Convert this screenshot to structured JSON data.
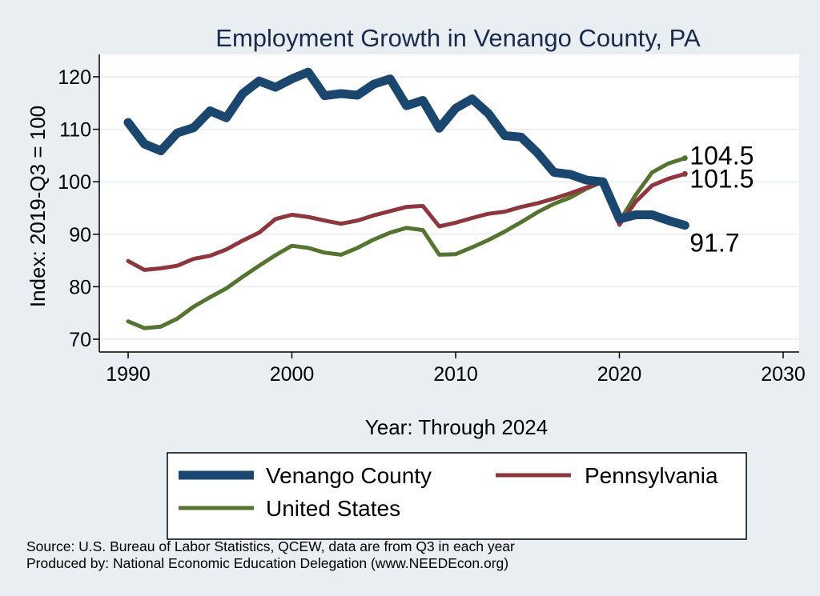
{
  "chart_data": {
    "type": "line",
    "title": "Employment Growth in Venango County, PA",
    "xlabel": "Year: Through 2024",
    "ylabel": "Index: 2019-Q3 = 100",
    "xlim": [
      1990,
      2030
    ],
    "ylim": [
      68,
      124
    ],
    "xticks": [
      1990,
      2000,
      2010,
      2020,
      2030
    ],
    "yticks": [
      70,
      80,
      90,
      100,
      110,
      120
    ],
    "grid": true,
    "legend_position": "bottom",
    "x": [
      1990,
      1991,
      1992,
      1993,
      1994,
      1995,
      1996,
      1997,
      1998,
      1999,
      2000,
      2001,
      2002,
      2003,
      2004,
      2005,
      2006,
      2007,
      2008,
      2009,
      2010,
      2011,
      2012,
      2013,
      2014,
      2015,
      2016,
      2017,
      2018,
      2019,
      2020,
      2021,
      2022,
      2023,
      2024
    ],
    "series": [
      {
        "name": "Venango  County",
        "color": "#1a476f",
        "values": [
          111.3,
          107.2,
          105.9,
          109.3,
          110.3,
          113.5,
          112.2,
          116.8,
          119.2,
          118.0,
          119.6,
          120.9,
          116.4,
          116.8,
          116.5,
          118.6,
          119.6,
          114.5,
          115.5,
          110.2,
          114.0,
          115.8,
          113.0,
          108.8,
          108.5,
          105.5,
          101.8,
          101.4,
          100.3,
          100.0,
          92.9,
          93.7,
          93.7,
          92.6,
          91.7
        ],
        "end_label": "91.7"
      },
      {
        "name": "Pennsylvania",
        "color": "#90353b",
        "values": [
          84.9,
          83.2,
          83.5,
          84.0,
          85.3,
          85.9,
          87.1,
          88.8,
          90.3,
          92.9,
          93.7,
          93.3,
          92.6,
          92.0,
          92.6,
          93.6,
          94.4,
          95.2,
          95.4,
          91.5,
          92.2,
          93.1,
          93.9,
          94.3,
          95.2,
          95.9,
          96.8,
          97.8,
          98.9,
          100.0,
          91.8,
          96.2,
          99.3,
          100.6,
          101.5
        ],
        "end_label": "101.5"
      },
      {
        "name": "United States",
        "color": "#55752f",
        "values": [
          73.4,
          72.1,
          72.4,
          73.9,
          76.2,
          78.0,
          79.7,
          81.9,
          84.0,
          86.0,
          87.8,
          87.4,
          86.5,
          86.1,
          87.4,
          89.0,
          90.3,
          91.2,
          90.8,
          86.1,
          86.2,
          87.5,
          88.9,
          90.5,
          92.3,
          94.2,
          95.8,
          97.0,
          98.7,
          100.0,
          92.4,
          97.5,
          101.8,
          103.5,
          104.5
        ],
        "end_label": "104.5"
      }
    ]
  },
  "source_note": "Source: U.S. Bureau of Labor Statistics, QCEW, data are from Q3 in each year",
  "produced_note": "Produced by: National Economic Education Delegation (www.NEEDEcon.org)"
}
